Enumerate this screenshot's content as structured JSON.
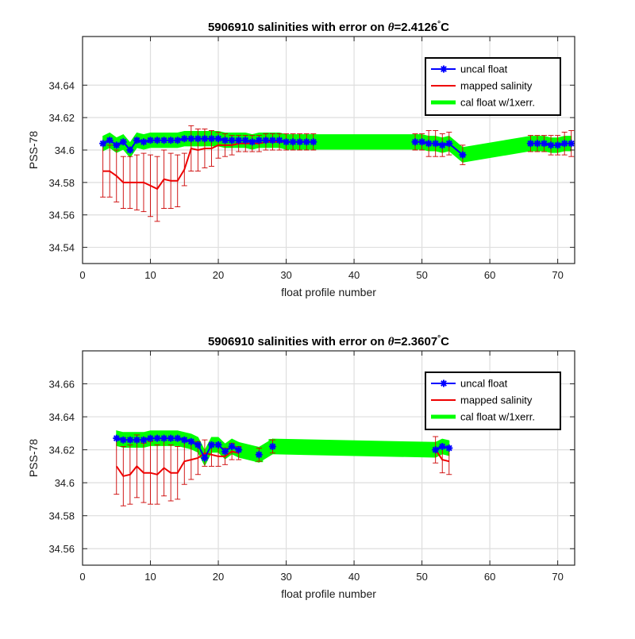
{
  "chart_data": [
    {
      "type": "line",
      "title_prefix": "5906910 salinities with error on ",
      "title_theta": "θ",
      "title_value": "=2.4126",
      "title_deg": "°",
      "title_unit": "C",
      "xlabel": "float profile number",
      "ylabel": "PSS-78",
      "xlim": [
        0,
        72.5
      ],
      "ylim": [
        34.53,
        34.67
      ],
      "xticks": [
        0,
        10,
        20,
        30,
        40,
        50,
        60,
        70
      ],
      "yticks": [
        34.54,
        34.56,
        34.58,
        34.6,
        34.62,
        34.64
      ],
      "ytick_labels": [
        "34.54",
        "34.56",
        "34.58",
        "34.6",
        "34.62",
        "34.64"
      ],
      "grid": true,
      "legend_position": "top-right",
      "legend": [
        "uncal float",
        "mapped salinity",
        "cal float w/1xerr."
      ],
      "colors": {
        "uncal": "#0000ff",
        "mapped": "#ee0000",
        "cal": "#00ff00",
        "errorbar": "#cc0000"
      },
      "cal_halfwidth": 0.0045,
      "segments": [
        {
          "x": [
            3,
            4,
            5,
            6,
            7,
            8,
            9,
            10,
            11,
            12,
            13,
            14,
            15,
            16,
            17,
            18,
            19,
            20,
            21,
            22,
            23,
            24,
            25,
            26,
            27,
            28,
            29,
            30,
            31,
            32,
            33,
            34
          ],
          "uncal": [
            34.604,
            34.606,
            34.603,
            34.605,
            34.6,
            34.606,
            34.605,
            34.606,
            34.606,
            34.606,
            34.606,
            34.606,
            34.607,
            34.607,
            34.607,
            34.607,
            34.607,
            34.607,
            34.606,
            34.606,
            34.606,
            34.606,
            34.605,
            34.606,
            34.606,
            34.606,
            34.606,
            34.605,
            34.605,
            34.605,
            34.605,
            34.605
          ],
          "mapped": [
            34.587,
            34.587,
            34.584,
            34.58,
            34.58,
            34.58,
            34.58,
            34.578,
            34.576,
            34.582,
            34.581,
            34.581,
            34.588,
            34.601,
            34.6,
            34.601,
            34.601,
            34.603,
            34.603,
            34.603,
            34.604,
            34.604,
            34.604,
            34.604,
            34.605,
            34.605,
            34.605,
            34.605,
            34.605,
            34.605,
            34.605,
            34.605
          ],
          "err": [
            0.016,
            0.016,
            0.016,
            0.016,
            0.016,
            0.017,
            0.018,
            0.019,
            0.02,
            0.018,
            0.017,
            0.016,
            0.01,
            0.014,
            0.013,
            0.012,
            0.011,
            0.008,
            0.007,
            0.006,
            0.005,
            0.005,
            0.005,
            0.005,
            0.005,
            0.005,
            0.005,
            0.005,
            0.005,
            0.005,
            0.005,
            0.005
          ]
        },
        {
          "x": [
            49,
            50,
            51,
            52,
            53,
            54,
            56
          ],
          "uncal": [
            34.605,
            34.605,
            34.604,
            34.604,
            34.603,
            34.604,
            34.597
          ],
          "mapped": [
            34.605,
            34.605,
            34.604,
            34.604,
            34.603,
            34.604,
            34.597
          ],
          "err": [
            0.005,
            0.005,
            0.008,
            0.008,
            0.007,
            0.007,
            0.006
          ]
        },
        {
          "x": [
            66,
            67,
            68,
            69,
            70,
            71,
            72
          ],
          "uncal": [
            34.604,
            34.604,
            34.604,
            34.603,
            34.603,
            34.604,
            34.604
          ],
          "mapped": [
            34.604,
            34.604,
            34.604,
            34.603,
            34.603,
            34.604,
            34.604
          ],
          "err": [
            0.005,
            0.005,
            0.005,
            0.006,
            0.006,
            0.007,
            0.008
          ]
        }
      ]
    },
    {
      "type": "line",
      "title_prefix": "5906910 salinities with error on ",
      "title_theta": "θ",
      "title_value": "=2.3607",
      "title_deg": "°",
      "title_unit": "C",
      "xlabel": "float profile number",
      "ylabel": "PSS-78",
      "xlim": [
        0,
        72.5
      ],
      "ylim": [
        34.55,
        34.68
      ],
      "xticks": [
        0,
        10,
        20,
        30,
        40,
        50,
        60,
        70
      ],
      "yticks": [
        34.56,
        34.58,
        34.6,
        34.62,
        34.64,
        34.66
      ],
      "ytick_labels": [
        "34.56",
        "34.58",
        "34.6",
        "34.62",
        "34.64",
        "34.66"
      ],
      "grid": true,
      "legend_position": "top-right",
      "legend": [
        "uncal float",
        "mapped salinity",
        "cal float w/1xerr."
      ],
      "colors": {
        "uncal": "#0000ff",
        "mapped": "#ee0000",
        "cal": "#00ff00",
        "errorbar": "#cc0000"
      },
      "cal_halfwidth": 0.0045,
      "segments": [
        {
          "x": [
            5,
            6,
            7,
            8,
            9,
            10,
            11,
            12,
            13,
            14,
            15,
            16,
            17,
            18,
            19,
            20,
            21,
            22,
            23
          ],
          "uncal": [
            34.627,
            34.626,
            34.626,
            34.626,
            34.626,
            34.627,
            34.627,
            34.627,
            34.627,
            34.627,
            34.626,
            34.625,
            34.623,
            34.615,
            34.623,
            34.623,
            34.619,
            34.622,
            34.62
          ],
          "mapped": [
            34.61,
            34.604,
            34.605,
            34.61,
            34.606,
            34.606,
            34.605,
            34.609,
            34.606,
            34.606,
            34.613,
            34.614,
            34.615,
            34.618,
            34.617,
            34.616,
            34.616,
            34.619,
            34.618
          ],
          "err": [
            0.017,
            0.018,
            0.018,
            0.019,
            0.018,
            0.019,
            0.018,
            0.017,
            0.017,
            0.016,
            0.014,
            0.012,
            0.01,
            0.008,
            0.007,
            0.006,
            0.005,
            0.005,
            0.004
          ]
        },
        {
          "x": [
            26
          ],
          "uncal": [
            34.617
          ],
          "mapped": [
            34.617
          ],
          "err": [
            0.004
          ]
        },
        {
          "x": [
            28
          ],
          "uncal": [
            34.622
          ],
          "mapped": [
            34.622
          ],
          "err": [
            0.004
          ]
        },
        {
          "x": [
            52,
            53,
            54
          ],
          "uncal": [
            34.62,
            34.622,
            34.621
          ],
          "mapped": [
            34.62,
            34.614,
            34.613
          ],
          "err": [
            0.008,
            0.008,
            0.008
          ]
        }
      ]
    }
  ]
}
